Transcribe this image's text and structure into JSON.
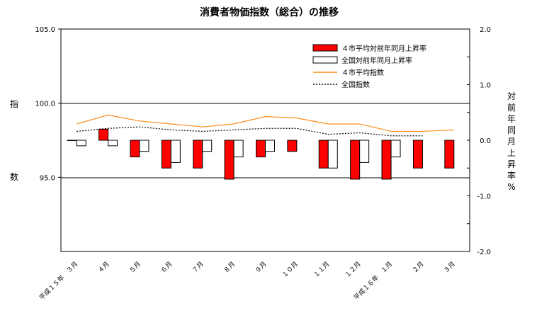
{
  "chart_data": {
    "type": "bar",
    "title": "消費者物価指数（総合）の推移",
    "left_axis_label": "指数",
    "right_axis_label": "対前年同月上昇率%",
    "left_ylim": [
      90,
      105
    ],
    "left_ticks": [
      "105.0",
      "100.0",
      "95.0"
    ],
    "left_tick_values": [
      105,
      100,
      95
    ],
    "right_ylim": [
      -2,
      2
    ],
    "right_ticks": [
      "2.0",
      "1.0",
      "0.0",
      "-1.0",
      "-2.0"
    ],
    "right_tick_values": [
      2,
      1,
      0,
      -1,
      -2
    ],
    "categories": [
      "平成１５年　３月",
      "４月",
      "５月",
      "６月",
      "７月",
      "８月",
      "９月",
      "１０月",
      "１１月",
      "１２月",
      "平成１６年　１月",
      "２月",
      "３月"
    ],
    "legend_position": "top-right",
    "series": [
      {
        "name": "４市平均対前年同月上昇率",
        "kind": "bar",
        "axis": "right",
        "color": "#ff0000",
        "values": [
          0.0,
          0.2,
          -0.3,
          -0.5,
          -0.5,
          -0.7,
          -0.3,
          -0.2,
          -0.5,
          -0.7,
          -0.7,
          -0.5,
          -0.5
        ]
      },
      {
        "name": "全国対前年同月上昇率",
        "kind": "bar",
        "axis": "right",
        "color": "#ffffff",
        "values": [
          -0.1,
          -0.1,
          -0.2,
          -0.4,
          -0.2,
          -0.3,
          -0.2,
          null,
          -0.5,
          -0.4,
          -0.3,
          null,
          null
        ]
      },
      {
        "name": "４市平均指数",
        "kind": "line",
        "axis": "left",
        "color": "#ff8c1a",
        "values": [
          98.6,
          99.2,
          98.8,
          98.6,
          98.4,
          98.6,
          99.1,
          99.0,
          98.6,
          98.6,
          98.1,
          98.1,
          98.2
        ]
      },
      {
        "name": "全国指数",
        "kind": "line",
        "axis": "left",
        "color": "#000000",
        "dashed": true,
        "values": [
          98.1,
          98.3,
          98.4,
          98.2,
          98.1,
          98.2,
          98.3,
          98.3,
          97.9,
          98.0,
          97.8,
          97.8,
          null
        ]
      }
    ]
  }
}
